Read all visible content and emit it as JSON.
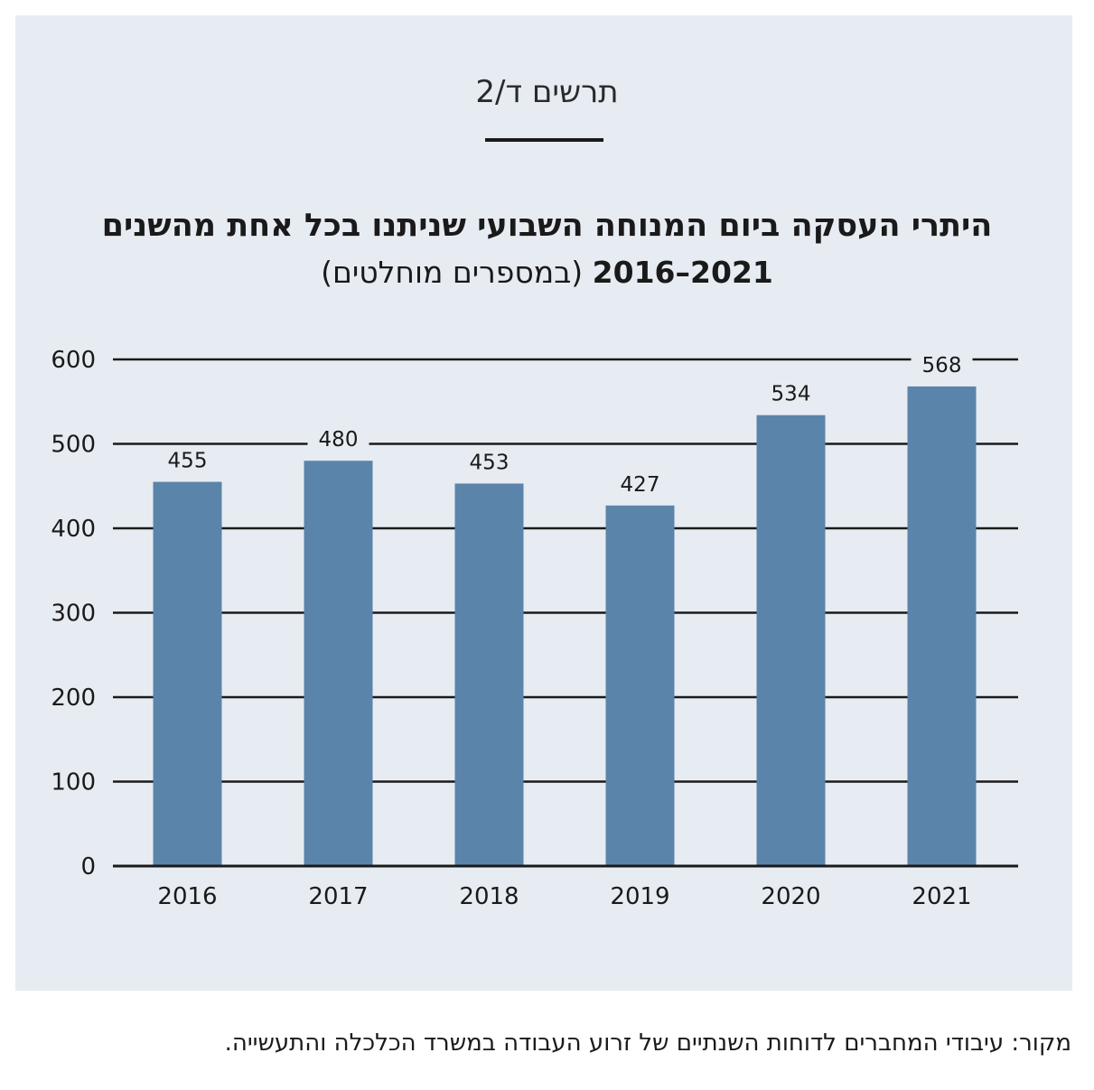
{
  "figure_label": "תרשים ד/2",
  "title_line1": "היתרי העסקה ביום המנוחה השבועי שניתנו בכל אחת מהשנים",
  "title_years": "2021–2016",
  "title_unit": "(במספרים מוחלטים)",
  "source_note": "מקור: עיבודי המחברים לדוחות השנתיים של זרוע העבודה במשרד הכלכלה והתעשייה.",
  "colors": {
    "bar": "#5b84ab",
    "panel": "#e7ecf2",
    "grid": "#1a1a1a"
  },
  "chart_data": {
    "type": "bar",
    "categories": [
      "2016",
      "2017",
      "2018",
      "2019",
      "2020",
      "2021"
    ],
    "values": [
      455,
      480,
      453,
      427,
      534,
      568
    ],
    "ylim": [
      0,
      600
    ],
    "yticks": [
      0,
      100,
      200,
      300,
      400,
      500,
      600
    ],
    "grid": true,
    "data_labels": true
  }
}
